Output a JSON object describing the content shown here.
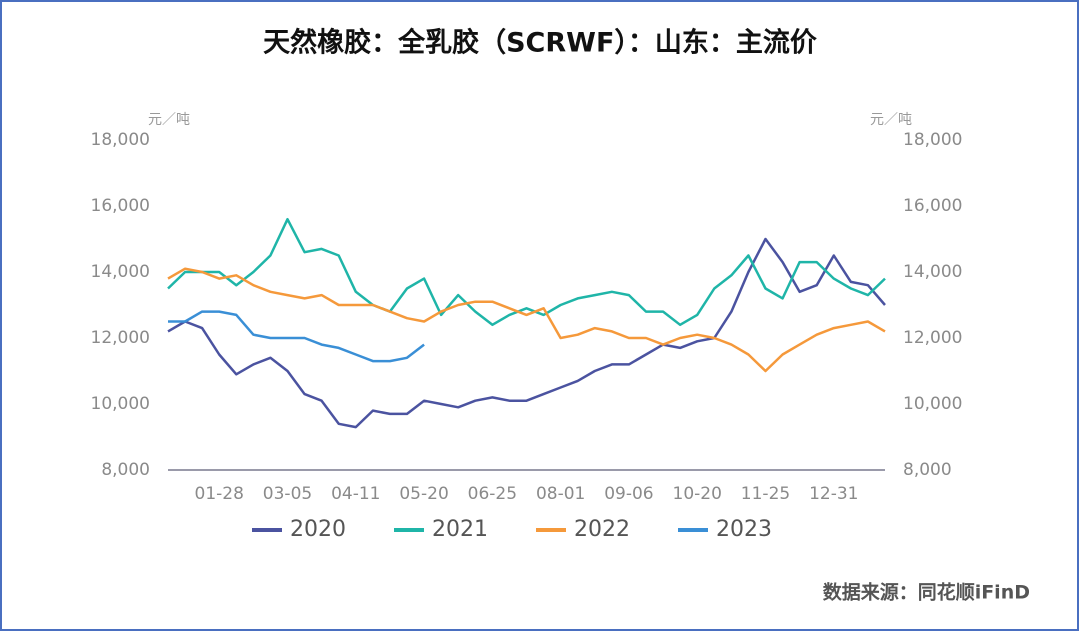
{
  "chart_data": {
    "type": "line",
    "title": "天然橡胶：全乳胶（SCRWF）：山东：主流价",
    "y_axis_label": "元／吨",
    "y2_axis_label": "元／吨",
    "source": "数据来源：同花顺iFinD",
    "categories": [
      null,
      null,
      null,
      "01-28",
      null,
      null,
      null,
      "03-05",
      null,
      null,
      null,
      "04-11",
      null,
      null,
      null,
      "05-20",
      null,
      null,
      null,
      "06-25",
      null,
      null,
      null,
      "08-01",
      null,
      null,
      null,
      "09-06",
      null,
      null,
      null,
      "10-20",
      null,
      null,
      null,
      "11-25",
      null,
      null,
      null,
      "12-31",
      null,
      null,
      null
    ],
    "series": [
      {
        "name": "2020",
        "color": "#4b53a0",
        "values": [
          12200,
          12500,
          12300,
          11500,
          10900,
          11200,
          11400,
          11000,
          10300,
          10100,
          9400,
          9300,
          9800,
          9700,
          9700,
          10100,
          10000,
          9900,
          10100,
          10200,
          10100,
          10100,
          10300,
          10500,
          10700,
          11000,
          11200,
          11200,
          11500,
          11800,
          11700,
          11900,
          12000,
          12800,
          14000,
          15000,
          14300,
          13400,
          13600,
          14500,
          13700,
          13600,
          13000
        ]
      },
      {
        "name": "2021",
        "color": "#1fb5a8",
        "values": [
          13500,
          14000,
          14000,
          14000,
          13600,
          14000,
          14500,
          15600,
          14600,
          14700,
          14500,
          13400,
          13000,
          12800,
          13500,
          13800,
          12700,
          13300,
          12800,
          12400,
          12700,
          12900,
          12700,
          13000,
          13200,
          13300,
          13400,
          13300,
          12800,
          12800,
          12400,
          12700,
          13500,
          13900,
          14500,
          13500,
          13200,
          14300,
          14300,
          13800,
          13500,
          13300,
          13800
        ]
      },
      {
        "name": "2022",
        "color": "#f5993b",
        "values": [
          13800,
          14100,
          14000,
          13800,
          13900,
          13600,
          13400,
          13300,
          13200,
          13300,
          13000,
          13000,
          13000,
          12800,
          12600,
          12500,
          12800,
          13000,
          13100,
          13100,
          12900,
          12700,
          12900,
          12000,
          12100,
          12300,
          12200,
          12000,
          12000,
          11800,
          12000,
          12100,
          12000,
          11800,
          11500,
          11000,
          11500,
          11800,
          12100,
          12300,
          12400,
          12500,
          12200
        ]
      },
      {
        "name": "2023",
        "color": "#3a8fd6",
        "values": [
          12500,
          12500,
          12800,
          12800,
          12700,
          12100,
          12000,
          12000,
          12000,
          11800,
          11700,
          11500,
          11300,
          11300,
          11400,
          11800,
          null,
          null,
          null,
          null,
          null,
          null,
          null,
          null,
          null,
          null,
          null,
          null,
          null,
          null,
          null,
          null,
          null,
          null,
          null,
          null,
          null,
          null,
          null,
          null,
          null,
          null,
          null
        ]
      }
    ],
    "ylim": [
      8000,
      18000
    ],
    "yticks": [
      {
        "value": 8000,
        "label": "8,000"
      },
      {
        "value": 10000,
        "label": "10,000"
      },
      {
        "value": 12000,
        "label": "12,000"
      },
      {
        "value": 14000,
        "label": "14,000"
      },
      {
        "value": 16000,
        "label": "16,000"
      },
      {
        "value": 18000,
        "label": "18,000"
      }
    ],
    "y2lim": [
      8000,
      18000
    ],
    "y2ticks": [
      {
        "value": 8000,
        "label": "8,000"
      },
      {
        "value": 10000,
        "label": "10,000"
      },
      {
        "value": 12000,
        "label": "12,000"
      },
      {
        "value": 14000,
        "label": "14,000"
      },
      {
        "value": 16000,
        "label": "16,000"
      },
      {
        "value": 18000,
        "label": "18,000"
      }
    ],
    "legend": "bottom"
  }
}
